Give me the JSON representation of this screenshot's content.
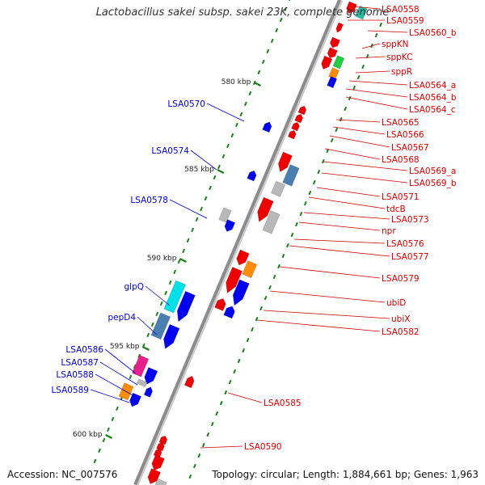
{
  "title": "Lactobacillus sakei subsp. sakei 23K, complete genome",
  "footer": {
    "accession": "Accession: NC_007576",
    "stats": "Topology: circular; Length: 1,884,661 bp; Genes: 1,963"
  },
  "colors": {
    "backbone": "#8c8c8c",
    "ticks": "#1a7f1a",
    "label_right": "#d40000",
    "label_left": "#0000c8",
    "leader": "#cc0000",
    "leader_left": "#0000c8"
  },
  "kbp_labels": [
    "580 kbp",
    "585 kbp",
    "590 kbp",
    "595 kbp",
    "600 kbp"
  ],
  "right_labels": [
    "LSA0558",
    "LSA0559",
    "LSA0560_b",
    "sppKN",
    "sppKC",
    "sppR",
    "LSA0564_a",
    "LSA0564_b",
    "LSA0564_c",
    "LSA0565",
    "LSA0566",
    "LSA0567",
    "LSA0568",
    "LSA0569_a",
    "LSA0569_b",
    "LSA0571",
    "tdcB",
    "LSA0573",
    "npr",
    "LSA0576",
    "LSA0577",
    "LSA0579",
    "ubiD",
    "ubiX",
    "LSA0582",
    "LSA0585",
    "LSA0590"
  ],
  "left_labels": [
    "LSA0570",
    "LSA0574",
    "LSA0578",
    "glpQ",
    "pepD4",
    "LSA0586",
    "LSA0587",
    "LSA0588",
    "LSA0589"
  ],
  "feature_colors": {
    "red": "#ee0000",
    "blue": "#0000ee",
    "gray": "#b8b8b8",
    "steel": "#4a7fb0",
    "green": "#22cc44",
    "orange": "#ff8c00",
    "cyan": "#00e0e8",
    "magenta": "#e8208c",
    "teal": "#22c0a0"
  }
}
